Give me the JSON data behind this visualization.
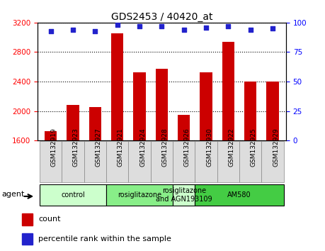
{
  "title": "GDS2453 / 40420_at",
  "samples": [
    "GSM132919",
    "GSM132923",
    "GSM132927",
    "GSM132921",
    "GSM132924",
    "GSM132928",
    "GSM132926",
    "GSM132930",
    "GSM132922",
    "GSM132925",
    "GSM132929"
  ],
  "counts": [
    1730,
    2080,
    2050,
    3050,
    2530,
    2570,
    1950,
    2530,
    2940,
    2400,
    2400
  ],
  "percentiles": [
    93,
    94,
    93,
    98,
    97,
    97,
    94,
    96,
    97,
    94,
    95
  ],
  "ylim_left": [
    1600,
    3200
  ],
  "ylim_right": [
    0,
    100
  ],
  "yticks_left": [
    1600,
    2000,
    2400,
    2800,
    3200
  ],
  "yticks_right": [
    0,
    25,
    50,
    75,
    100
  ],
  "bar_color": "#cc0000",
  "dot_color": "#2222cc",
  "groups": [
    {
      "label": "control",
      "start": 0,
      "end": 3,
      "color": "#ccffcc"
    },
    {
      "label": "rosiglitazone",
      "start": 3,
      "end": 6,
      "color": "#88ee88"
    },
    {
      "label": "rosiglitazone\nand AGN193109",
      "start": 6,
      "end": 7,
      "color": "#ccffcc"
    },
    {
      "label": "AM580",
      "start": 7,
      "end": 11,
      "color": "#44cc44"
    }
  ],
  "agent_label": "agent",
  "legend_bar_label": "count",
  "legend_dot_label": "percentile rank within the sample",
  "background_color": "#ffffff",
  "plot_bg_color": "#ffffff",
  "tick_bg_color": "#dddddd"
}
